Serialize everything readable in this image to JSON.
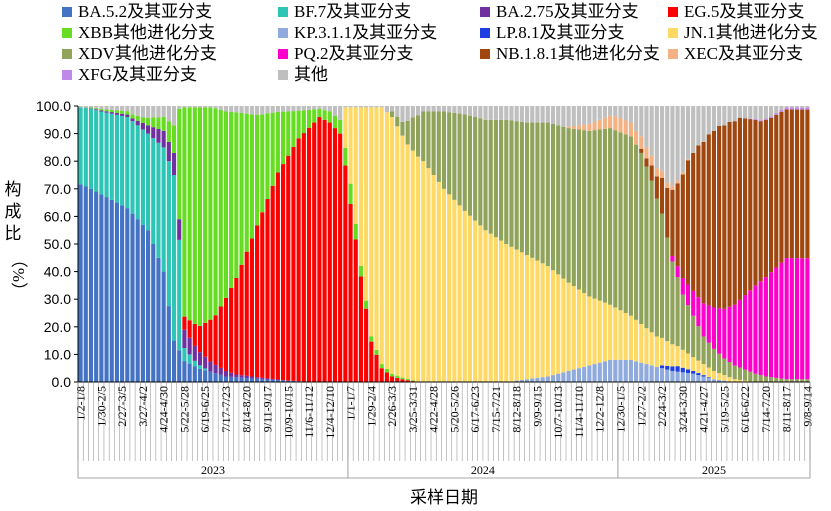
{
  "chart_data": {
    "type": "bar",
    "stacked": true,
    "xlabel": "采样日期",
    "ylabel_chars": [
      "构",
      "成",
      "比",
      "（%）"
    ],
    "ylim": [
      0,
      100
    ],
    "yticks": [
      "0.0",
      "10.0",
      "20.0",
      "30.0",
      "40.0",
      "50.0",
      "60.0",
      "70.0",
      "80.0",
      "90.0",
      "100.0"
    ],
    "legend_position": "top",
    "week_labels": [
      "1/2-1/8",
      "1/30-2/5",
      "2/27-3/5",
      "3/27-4/2",
      "4/24-4/30",
      "5/22-5/28",
      "6/19-6/25",
      "7/17-7/23",
      "8/14-8/20",
      "9/11-9/17",
      "10/9-10/15",
      "11/6-11/12",
      "12/4-12/10",
      "1/1-1/7",
      "1/29-2/4",
      "2/26-3/3",
      "3/25-3/31",
      "4/22-4/28",
      "5/20-5/26",
      "6/17-6/23",
      "7/15-7/21",
      "8/12-8/18",
      "9/9-9/15",
      "10/7-10/13",
      "11/4-11/10",
      "12/2-12/8",
      "12/30-1/5",
      "1/27-2/2",
      "2/24-3/2",
      "3/24-3/30",
      "4/21-4/27",
      "5/19-5/25",
      "6/16-6/22",
      "7/14-7/20",
      "8/11-8/17",
      "9/8-9/14"
    ],
    "years": [
      {
        "label": "2023",
        "weeks": 52
      },
      {
        "label": "2024",
        "weeks": 52
      },
      {
        "label": "2025",
        "weeks": 37
      }
    ],
    "series": [
      {
        "name": "BA.5.2及其亚分支",
        "color": "#4472C4",
        "keyframes": [
          [
            0,
            72
          ],
          [
            4,
            68
          ],
          [
            9,
            63
          ],
          [
            13,
            55
          ],
          [
            16,
            40
          ],
          [
            18,
            15
          ],
          [
            20,
            8
          ],
          [
            23,
            5
          ],
          [
            28,
            2
          ],
          [
            35,
            1
          ],
          [
            45,
            0
          ]
        ]
      },
      {
        "name": "BF.7及其亚分支",
        "color": "#2EC4B6",
        "keyframes": [
          [
            0,
            28
          ],
          [
            4,
            30
          ],
          [
            9,
            33
          ],
          [
            13,
            35
          ],
          [
            16,
            45
          ],
          [
            18,
            60
          ],
          [
            19,
            40
          ],
          [
            20,
            5
          ],
          [
            22,
            2
          ],
          [
            25,
            0
          ]
        ]
      },
      {
        "name": "BA.2.75及其亚分支",
        "color": "#7030A0",
        "keyframes": [
          [
            0,
            0
          ],
          [
            10,
            1
          ],
          [
            13,
            3
          ],
          [
            16,
            6
          ],
          [
            18,
            8
          ],
          [
            20,
            7
          ],
          [
            23,
            5
          ],
          [
            26,
            3
          ],
          [
            30,
            1
          ],
          [
            40,
            0
          ]
        ]
      },
      {
        "name": "EG.5及其亚分支",
        "color": "#FF0000",
        "keyframes": [
          [
            0,
            0
          ],
          [
            19,
            0
          ],
          [
            20,
            5
          ],
          [
            23,
            10
          ],
          [
            26,
            18
          ],
          [
            30,
            35
          ],
          [
            34,
            55
          ],
          [
            38,
            75
          ],
          [
            42,
            88
          ],
          [
            46,
            96
          ],
          [
            48,
            94
          ],
          [
            50,
            90
          ],
          [
            52,
            70
          ],
          [
            54,
            40
          ],
          [
            56,
            15
          ],
          [
            58,
            5
          ],
          [
            60,
            2
          ],
          [
            62,
            1
          ],
          [
            65,
            0
          ]
        ]
      },
      {
        "name": "XBB其他进化分支",
        "color": "#66DD22",
        "keyframes": [
          [
            0,
            0
          ],
          [
            8,
            1
          ],
          [
            12,
            2
          ],
          [
            16,
            5
          ],
          [
            18,
            10
          ],
          [
            19,
            40
          ],
          [
            20,
            80
          ],
          [
            23,
            83
          ],
          [
            26,
            75
          ],
          [
            30,
            60
          ],
          [
            34,
            40
          ],
          [
            38,
            22
          ],
          [
            42,
            10
          ],
          [
            46,
            3
          ],
          [
            50,
            5
          ],
          [
            52,
            8
          ],
          [
            54,
            4
          ],
          [
            56,
            2
          ],
          [
            60,
            1
          ],
          [
            65,
            0
          ]
        ]
      },
      {
        "name": "KP.3.1.1及其亚分支",
        "color": "#8FAADC",
        "keyframes": [
          [
            0,
            0
          ],
          [
            82,
            0
          ],
          [
            86,
            1
          ],
          [
            90,
            2
          ],
          [
            94,
            4
          ],
          [
            98,
            6
          ],
          [
            102,
            8
          ],
          [
            106,
            8
          ],
          [
            110,
            6
          ],
          [
            114,
            4
          ],
          [
            118,
            3
          ],
          [
            122,
            1
          ],
          [
            126,
            0
          ]
        ]
      },
      {
        "name": "LP.8.1及其亚分支",
        "color": "#1F3FE0",
        "keyframes": [
          [
            0,
            0
          ],
          [
            111,
            0
          ],
          [
            112,
            1
          ],
          [
            115,
            2
          ],
          [
            118,
            1
          ],
          [
            122,
            0
          ]
        ]
      },
      {
        "name": "JN.1其他进化分支",
        "color": "#FFD966",
        "keyframes": [
          [
            0,
            0
          ],
          [
            50,
            0
          ],
          [
            52,
            30
          ],
          [
            54,
            60
          ],
          [
            56,
            85
          ],
          [
            58,
            93
          ],
          [
            60,
            93
          ],
          [
            63,
            85
          ],
          [
            66,
            80
          ],
          [
            70,
            70
          ],
          [
            74,
            62
          ],
          [
            78,
            55
          ],
          [
            82,
            50
          ],
          [
            86,
            45
          ],
          [
            90,
            40
          ],
          [
            94,
            32
          ],
          [
            98,
            25
          ],
          [
            102,
            20
          ],
          [
            106,
            16
          ],
          [
            110,
            12
          ],
          [
            114,
            8
          ],
          [
            118,
            5
          ],
          [
            122,
            3
          ],
          [
            126,
            1
          ],
          [
            130,
            0
          ]
        ]
      },
      {
        "name": "XDV其他进化分支",
        "color": "#8FA35A",
        "keyframes": [
          [
            0,
            0
          ],
          [
            59,
            0
          ],
          [
            60,
            2
          ],
          [
            62,
            5
          ],
          [
            64,
            12
          ],
          [
            66,
            18
          ],
          [
            70,
            28
          ],
          [
            74,
            35
          ],
          [
            78,
            40
          ],
          [
            82,
            45
          ],
          [
            86,
            48
          ],
          [
            90,
            52
          ],
          [
            94,
            56
          ],
          [
            98,
            60
          ],
          [
            102,
            64
          ],
          [
            106,
            65
          ],
          [
            108,
            62
          ],
          [
            110,
            55
          ],
          [
            112,
            45
          ],
          [
            114,
            30
          ],
          [
            116,
            20
          ],
          [
            118,
            15
          ],
          [
            120,
            10
          ],
          [
            124,
            6
          ],
          [
            128,
            4
          ],
          [
            132,
            2
          ],
          [
            136,
            1
          ]
        ]
      },
      {
        "name": "PQ.2及其亚分支",
        "color": "#FF00CC",
        "keyframes": [
          [
            0,
            0
          ],
          [
            113,
            0
          ],
          [
            114,
            2
          ],
          [
            116,
            6
          ],
          [
            118,
            9
          ],
          [
            120,
            12
          ],
          [
            122,
            15
          ],
          [
            124,
            18
          ],
          [
            126,
            22
          ],
          [
            128,
            27
          ],
          [
            130,
            32
          ],
          [
            132,
            36
          ],
          [
            134,
            40
          ],
          [
            136,
            44
          ]
        ]
      },
      {
        "name": "NB.1.8.1其他进化分支",
        "color": "#A0470F",
        "keyframes": [
          [
            0,
            0
          ],
          [
            107,
            0
          ],
          [
            109,
            3
          ],
          [
            111,
            8
          ],
          [
            113,
            18
          ],
          [
            115,
            30
          ],
          [
            117,
            45
          ],
          [
            119,
            55
          ],
          [
            121,
            62
          ],
          [
            123,
            66
          ],
          [
            125,
            67
          ],
          [
            127,
            66
          ],
          [
            129,
            62
          ],
          [
            131,
            58
          ],
          [
            133,
            56
          ],
          [
            136,
            54
          ]
        ]
      },
      {
        "name": "XEC及其亚分支",
        "color": "#F4B183",
        "keyframes": [
          [
            0,
            0
          ],
          [
            93,
            0
          ],
          [
            95,
            1
          ],
          [
            97,
            2
          ],
          [
            99,
            3
          ],
          [
            101,
            4
          ],
          [
            103,
            5
          ],
          [
            105,
            5
          ],
          [
            107,
            5
          ],
          [
            109,
            4
          ],
          [
            111,
            3
          ],
          [
            113,
            2
          ],
          [
            115,
            1
          ],
          [
            118,
            0
          ]
        ]
      },
      {
        "name": "XFG及其亚分支",
        "color": "#C088E8",
        "keyframes": [
          [
            0,
            0
          ],
          [
            128,
            0
          ],
          [
            130,
            0.3
          ],
          [
            134,
            0.6
          ],
          [
            138,
            0.8
          ]
        ]
      },
      {
        "name": "其他",
        "color": "#BFBFBF",
        "is_remainder": true
      }
    ]
  }
}
